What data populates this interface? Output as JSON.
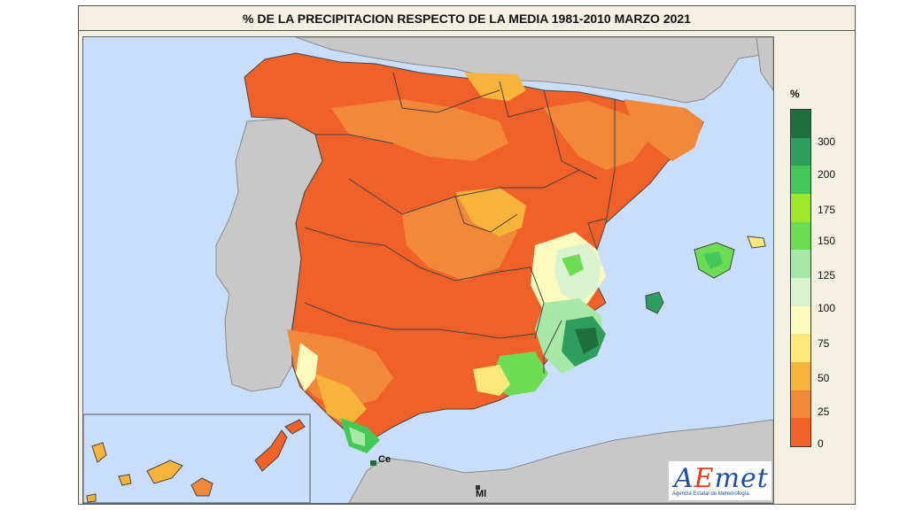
{
  "title": "% DE LA PRECIPITACION RESPECTO DE LA MEDIA 1981-2010 MARZO 2021",
  "legend": {
    "unit": "%",
    "colors": [
      "#f0612a",
      "#f2883a",
      "#f8b33a",
      "#fbe77a",
      "#fbfbc0",
      "#d9f3d0",
      "#a7e8a6",
      "#6ddc55",
      "#9ee82b",
      "#44c85a",
      "#2e9d5d",
      "#1e6e3e"
    ],
    "ticks": [
      "300",
      "200",
      "175",
      "150",
      "125",
      "100",
      "75",
      "50",
      "25",
      "0"
    ]
  },
  "labels": {
    "ceuta": "Ce",
    "melilla": "Ml"
  },
  "logo": {
    "brand_a": "A",
    "brand_e": "E",
    "brand_rest": "met",
    "subtitle": "Agencia Estatal de Meteorología"
  }
}
